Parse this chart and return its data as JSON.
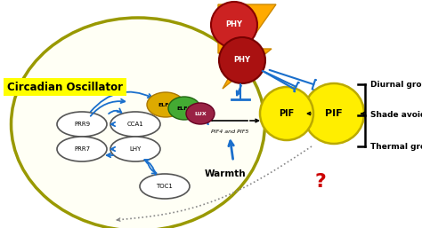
{
  "bg_color": "#ffffff",
  "cell_color": "#fffff5",
  "cell_border_color": "#999900",
  "circadian_label": "Circadian Oscillator",
  "blue": "#1a6fcc",
  "red_q_color": "#cc0000",
  "dotted_color": "#888888",
  "outputs": [
    "Diurnal growth",
    "Shade avoidance",
    "Thermal growth"
  ]
}
